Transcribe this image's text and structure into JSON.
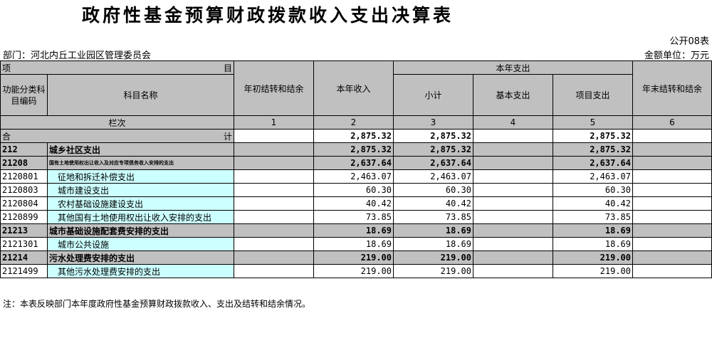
{
  "title": "政府性基金预算财政拨款收入支出决算表",
  "form_no": "公开08表",
  "department": "部门：河北内丘工业园区管理委员会",
  "unit": "金额单位：万元",
  "headers": {
    "item_left": "项",
    "item_right": "目",
    "code": "功能分类科目编码",
    "name": "科目名称",
    "begin_balance": "年初结转和结余",
    "income": "本年收入",
    "expense_group": "本年支出",
    "subtotal": "小计",
    "basic": "基本支出",
    "project": "项目支出",
    "end_balance": "年末结转和结余",
    "column_index": "栏次",
    "col_nums": [
      "1",
      "2",
      "3",
      "4",
      "5",
      "6"
    ]
  },
  "total": {
    "left": "合",
    "right": "计",
    "income": "2,875.32",
    "subtotal": "2,875.32",
    "project": "2,875.32"
  },
  "rows": [
    {
      "code": "212",
      "name": "城乡社区支出",
      "income": "2,875.32",
      "subtotal": "2,875.32",
      "project": "2,875.32"
    },
    {
      "code": "21208",
      "name": "国有土地使用权出让收入及对应专项债务收入安排的支出",
      "income": "2,637.64",
      "subtotal": "2,637.64",
      "project": "2,637.64"
    },
    {
      "code": "2120801",
      "name": "征地和拆迁补偿支出",
      "income": "2,463.07",
      "subtotal": "2,463.07",
      "project": "2,463.07"
    },
    {
      "code": "2120803",
      "name": "城市建设支出",
      "income": "60.30",
      "subtotal": "60.30",
      "project": "60.30"
    },
    {
      "code": "2120804",
      "name": "农村基础设施建设支出",
      "income": "40.42",
      "subtotal": "40.42",
      "project": "40.42"
    },
    {
      "code": "2120899",
      "name": "其他国有土地使用权出让收入安排的支出",
      "income": "73.85",
      "subtotal": "73.85",
      "project": "73.85"
    },
    {
      "code": "21213",
      "name": "城市基础设施配套费安排的支出",
      "income": "18.69",
      "subtotal": "18.69",
      "project": "18.69"
    },
    {
      "code": "2121301",
      "name": "城市公共设施",
      "income": "18.69",
      "subtotal": "18.69",
      "project": "18.69"
    },
    {
      "code": "21214",
      "name": "污水处理费安排的支出",
      "income": "219.00",
      "subtotal": "219.00",
      "project": "219.00"
    },
    {
      "code": "2121499",
      "name": "其他污水处理费安排的支出",
      "income": "219.00",
      "subtotal": "219.00",
      "project": "219.00"
    }
  ],
  "note": "注：本表反映部门本年度政府性基金预算财政拨款收入、支出及结转和结余情况。"
}
